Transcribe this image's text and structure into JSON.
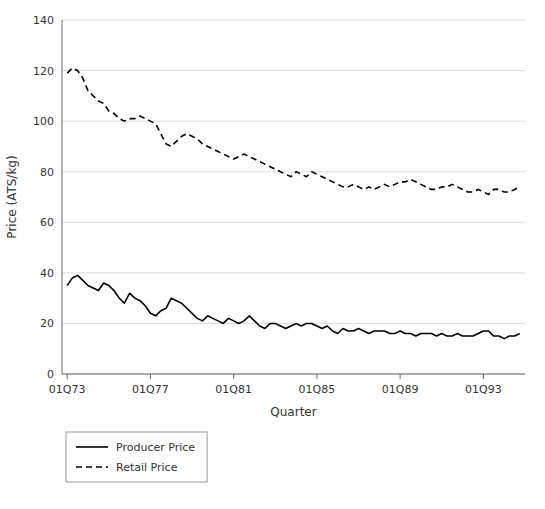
{
  "chart_data": {
    "type": "line",
    "xlabel": "Quarter",
    "ylabel": "Price (ATS/kg)",
    "categories": [
      "01Q73",
      null,
      null,
      null,
      null,
      null,
      null,
      null,
      null,
      null,
      null,
      null,
      null,
      null,
      null,
      null,
      "01Q77",
      null,
      null,
      null,
      null,
      null,
      null,
      null,
      null,
      null,
      null,
      null,
      null,
      null,
      null,
      null,
      "01Q81",
      null,
      null,
      null,
      null,
      null,
      null,
      null,
      null,
      null,
      null,
      null,
      null,
      null,
      null,
      null,
      "01Q85",
      null,
      null,
      null,
      null,
      null,
      null,
      null,
      null,
      null,
      null,
      null,
      null,
      null,
      null,
      null,
      "01Q89",
      null,
      null,
      null,
      null,
      null,
      null,
      null,
      null,
      null,
      null,
      null,
      null,
      null,
      null,
      null,
      "01Q93",
      null,
      null,
      null,
      null,
      null,
      null,
      null
    ],
    "series": [
      {
        "name": "Producer Price",
        "color": "#000000",
        "line_style": "solid",
        "values": [
          35,
          38,
          39,
          37,
          35,
          34,
          33,
          36,
          35,
          33,
          30,
          28,
          32,
          30,
          29,
          27,
          24,
          23,
          25,
          26,
          30,
          29,
          28,
          26,
          24,
          22,
          21,
          23,
          22,
          21,
          20,
          22,
          21,
          20,
          21,
          23,
          21,
          19,
          18,
          20,
          20,
          19,
          18,
          19,
          20,
          19,
          20,
          20,
          19,
          18,
          19,
          17,
          16,
          18,
          17,
          17,
          18,
          17,
          16,
          17,
          17,
          17,
          16,
          16,
          17,
          16,
          16,
          15,
          16,
          16,
          16,
          15,
          16,
          15,
          15,
          16,
          15,
          15,
          15,
          16,
          17,
          17,
          15,
          15,
          14,
          15,
          15,
          16
        ]
      },
      {
        "name": "Retail Price",
        "color": "#000000",
        "line_style": "dashed",
        "values": [
          119,
          121,
          120,
          117,
          112,
          110,
          108,
          107,
          104,
          103,
          101,
          100,
          101,
          101,
          102,
          101,
          100,
          99,
          95,
          91,
          90,
          92,
          94,
          95,
          94,
          93,
          91,
          90,
          89,
          88,
          87,
          86,
          85,
          86,
          87,
          86,
          85,
          84,
          83,
          82,
          81,
          80,
          79,
          78,
          80,
          79,
          78,
          80,
          79,
          78,
          77,
          76,
          75,
          74,
          74,
          75,
          74,
          73,
          74,
          73,
          74,
          75,
          74,
          75,
          76,
          76,
          77,
          76,
          75,
          74,
          73,
          73,
          74,
          74,
          75,
          74,
          73,
          72,
          72,
          73,
          72,
          71,
          73,
          73,
          72,
          72,
          73,
          74
        ]
      }
    ],
    "ylim": [
      0,
      140
    ],
    "yticks": [
      0,
      20,
      40,
      60,
      80,
      100,
      120,
      140
    ],
    "grid": true,
    "legend": "lower left"
  }
}
